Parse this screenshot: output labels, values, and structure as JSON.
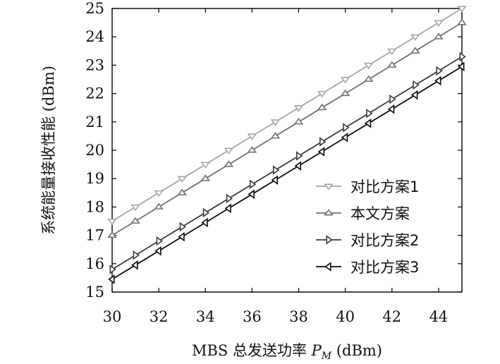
{
  "chart_data": {
    "type": "line",
    "title": "",
    "xlabel_prefix": "MBS 总发送功率 ",
    "xlabel_var": "P",
    "xlabel_sub": "M",
    "xlabel_unit": " (dBm)",
    "ylabel": "系统能量接收性能 (dBm)",
    "xlim": [
      30,
      45
    ],
    "ylim": [
      15,
      25
    ],
    "xticks": [
      30,
      32,
      34,
      36,
      38,
      40,
      42,
      44
    ],
    "yticks": [
      15,
      16,
      17,
      18,
      19,
      20,
      21,
      22,
      23,
      24,
      25
    ],
    "grid": false,
    "legend_position": "lower-right",
    "x": [
      30,
      31,
      32,
      33,
      34,
      35,
      36,
      37,
      38,
      39,
      40,
      41,
      42,
      43,
      44,
      45
    ],
    "series": [
      {
        "name": "对比方案1",
        "marker": "triangle-down",
        "color": "#a6a6a6",
        "values": [
          17.5,
          18.0,
          18.5,
          19.0,
          19.5,
          20.0,
          20.5,
          21.0,
          21.5,
          22.0,
          22.5,
          23.0,
          23.5,
          24.0,
          24.5,
          25.0
        ]
      },
      {
        "name": "本文方案",
        "marker": "triangle-up",
        "color": "#707070",
        "values": [
          17.0,
          17.5,
          18.0,
          18.5,
          19.0,
          19.5,
          20.0,
          20.5,
          21.0,
          21.5,
          22.0,
          22.5,
          23.0,
          23.5,
          24.0,
          24.5
        ]
      },
      {
        "name": "对比方案2",
        "marker": "triangle-right",
        "color": "#3a3a3a",
        "values": [
          15.8,
          16.3,
          16.8,
          17.3,
          17.8,
          18.3,
          18.8,
          19.3,
          19.8,
          20.3,
          20.8,
          21.3,
          21.8,
          22.3,
          22.8,
          23.3
        ]
      },
      {
        "name": "对比方案3",
        "marker": "triangle-left",
        "color": "#0a0a0a",
        "values": [
          15.45,
          15.95,
          16.45,
          16.95,
          17.45,
          17.95,
          18.45,
          18.95,
          19.45,
          19.95,
          20.45,
          20.95,
          21.45,
          21.95,
          22.45,
          22.95
        ]
      }
    ]
  }
}
